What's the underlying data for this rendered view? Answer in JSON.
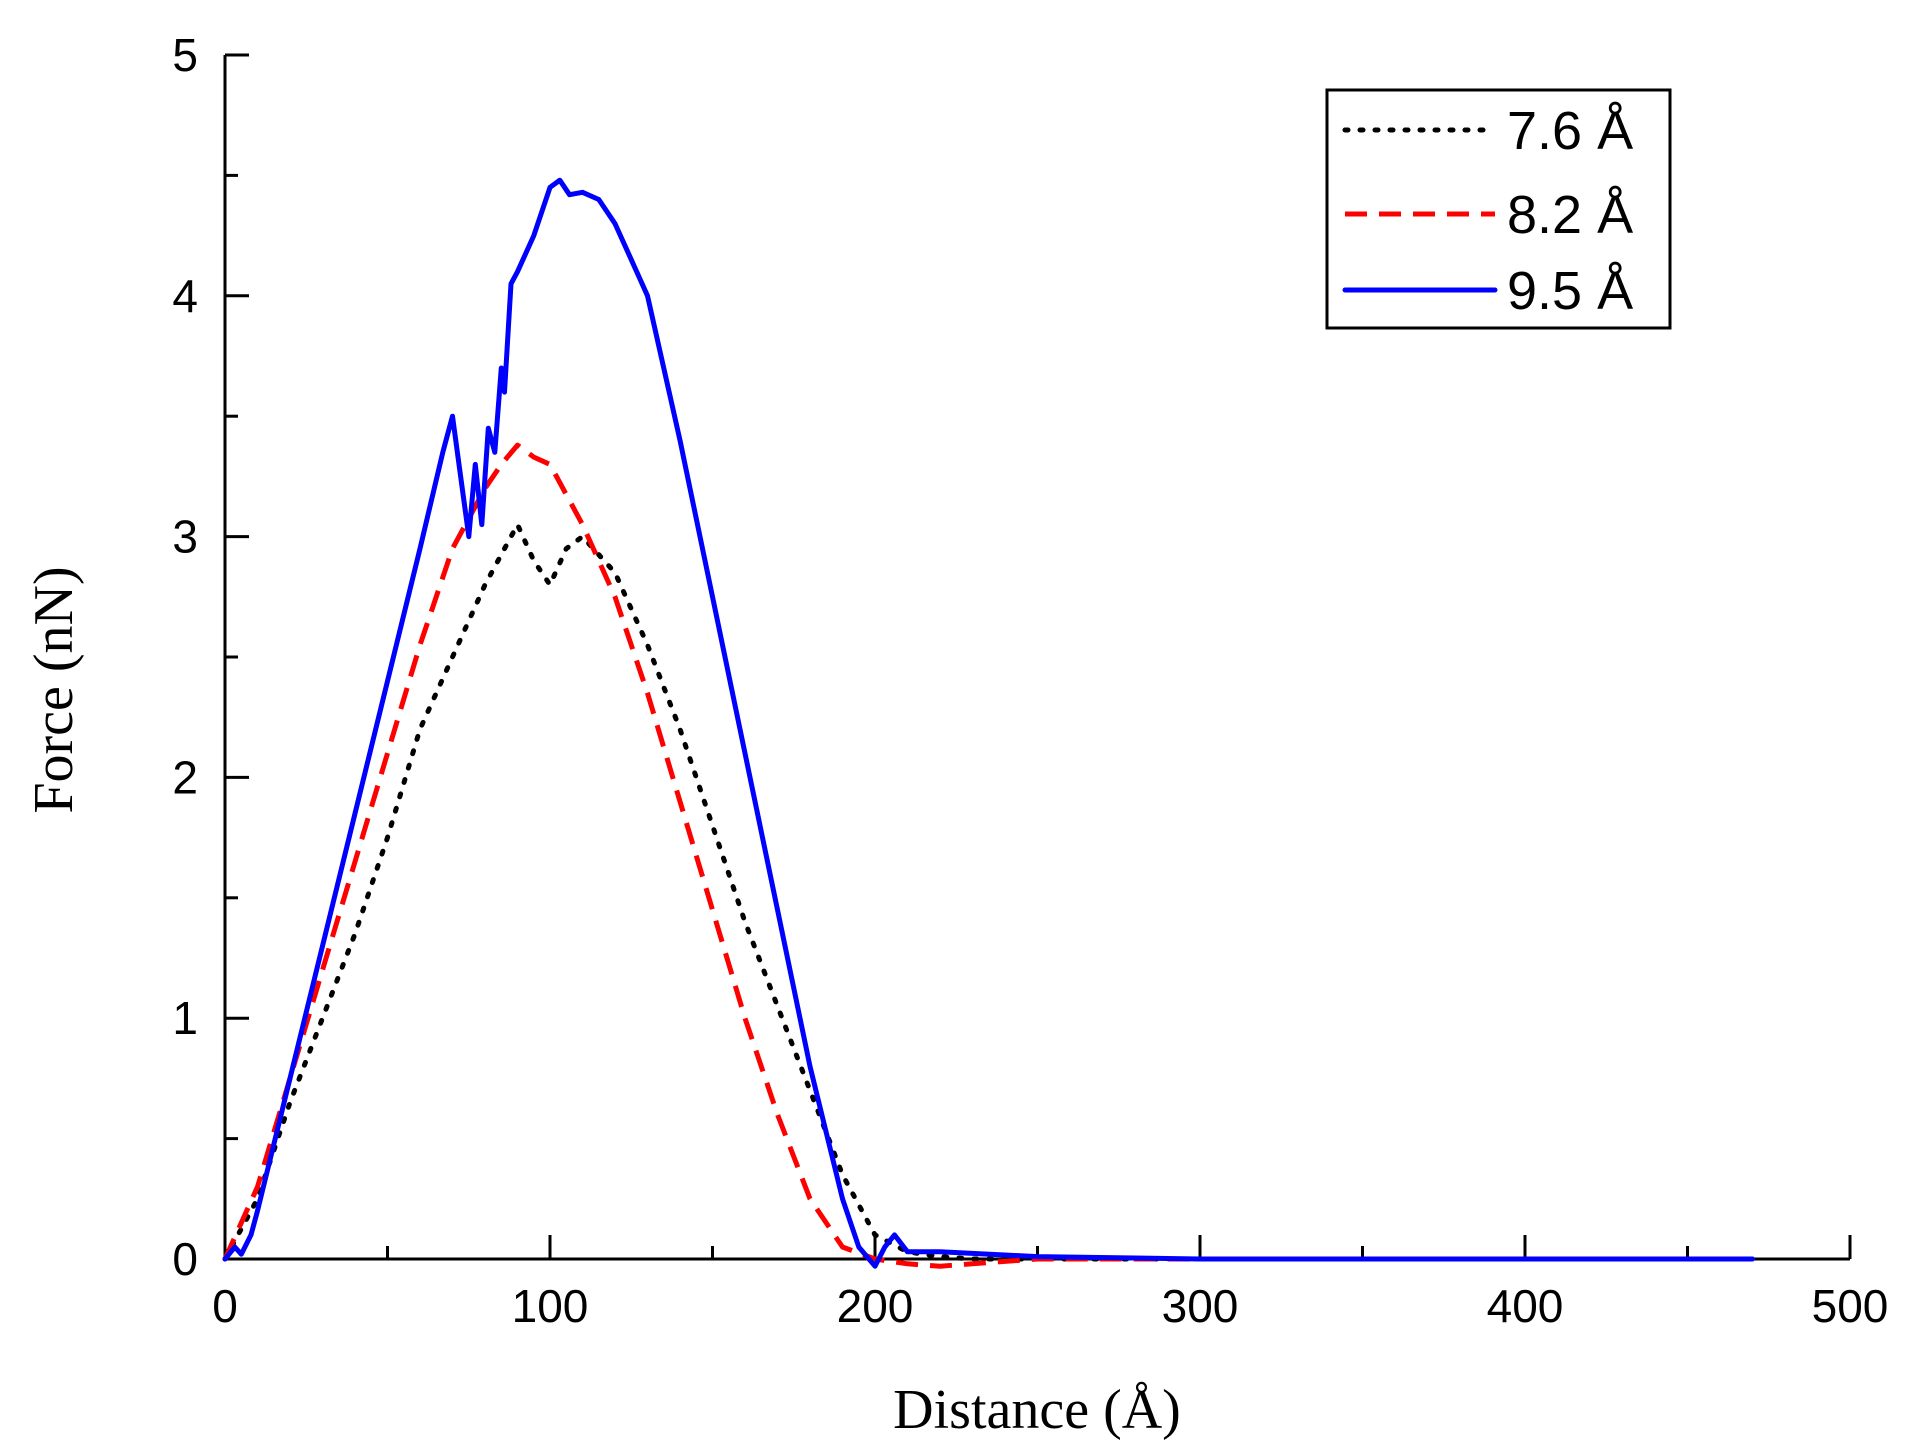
{
  "chart_data": {
    "type": "line",
    "title": "",
    "xlabel": "Distance (Å)",
    "ylabel": "Force (nN)",
    "xlim": [
      0,
      500
    ],
    "ylim": [
      0,
      5
    ],
    "xticks": [
      0,
      100,
      200,
      300,
      400,
      500
    ],
    "yticks": [
      0,
      1,
      2,
      3,
      4,
      5
    ],
    "grid": false,
    "legend_position": "top-right",
    "series": [
      {
        "name": "7.6 Å",
        "style": "dotted",
        "color": "#000000",
        "x": [
          0,
          10,
          20,
          30,
          40,
          50,
          60,
          70,
          80,
          90,
          95,
          100,
          105,
          110,
          120,
          130,
          140,
          150,
          160,
          170,
          180,
          190,
          200,
          210,
          220,
          230,
          250,
          300,
          350,
          400,
          470
        ],
        "y": [
          0,
          0.25,
          0.65,
          1.0,
          1.35,
          1.75,
          2.2,
          2.5,
          2.8,
          3.05,
          2.9,
          2.8,
          2.95,
          3.0,
          2.85,
          2.55,
          2.2,
          1.8,
          1.4,
          1.05,
          0.7,
          0.35,
          0.1,
          0.03,
          0.01,
          0.0,
          0.0,
          0.0,
          0.0,
          0.0,
          0.0
        ]
      },
      {
        "name": "8.2 Å",
        "style": "dashed",
        "color": "#ff0000",
        "x": [
          0,
          10,
          20,
          30,
          40,
          50,
          60,
          70,
          80,
          85,
          90,
          95,
          100,
          110,
          120,
          130,
          140,
          150,
          160,
          170,
          180,
          190,
          200,
          210,
          220,
          230,
          250,
          300,
          350,
          400,
          470
        ],
        "y": [
          0,
          0.3,
          0.75,
          1.2,
          1.65,
          2.1,
          2.55,
          2.95,
          3.2,
          3.3,
          3.38,
          3.33,
          3.3,
          3.05,
          2.75,
          2.35,
          1.9,
          1.45,
          1.0,
          0.6,
          0.25,
          0.05,
          0.0,
          -0.02,
          -0.03,
          -0.02,
          0.0,
          0.0,
          0.0,
          0.0,
          0.0
        ]
      },
      {
        "name": "9.5 Å",
        "style": "solid",
        "color": "#0000ff",
        "x": [
          0,
          3,
          5,
          8,
          10,
          20,
          30,
          40,
          50,
          60,
          67,
          70,
          72,
          75,
          77,
          79,
          81,
          83,
          85,
          86,
          88,
          90,
          95,
          100,
          103,
          106,
          110,
          115,
          120,
          125,
          130,
          140,
          150,
          160,
          170,
          180,
          190,
          195,
          200,
          203,
          206,
          210,
          220,
          250,
          300,
          350,
          400,
          470
        ],
        "y": [
          0,
          0.05,
          0.02,
          0.1,
          0.2,
          0.75,
          1.3,
          1.85,
          2.4,
          2.95,
          3.35,
          3.5,
          3.3,
          3.0,
          3.3,
          3.05,
          3.45,
          3.35,
          3.7,
          3.6,
          4.05,
          4.1,
          4.25,
          4.45,
          4.48,
          4.42,
          4.43,
          4.4,
          4.3,
          4.15,
          4.0,
          3.4,
          2.75,
          2.1,
          1.45,
          0.8,
          0.25,
          0.05,
          -0.03,
          0.05,
          0.1,
          0.03,
          0.03,
          0.01,
          0.0,
          0.0,
          0.0,
          0.0
        ]
      }
    ]
  }
}
